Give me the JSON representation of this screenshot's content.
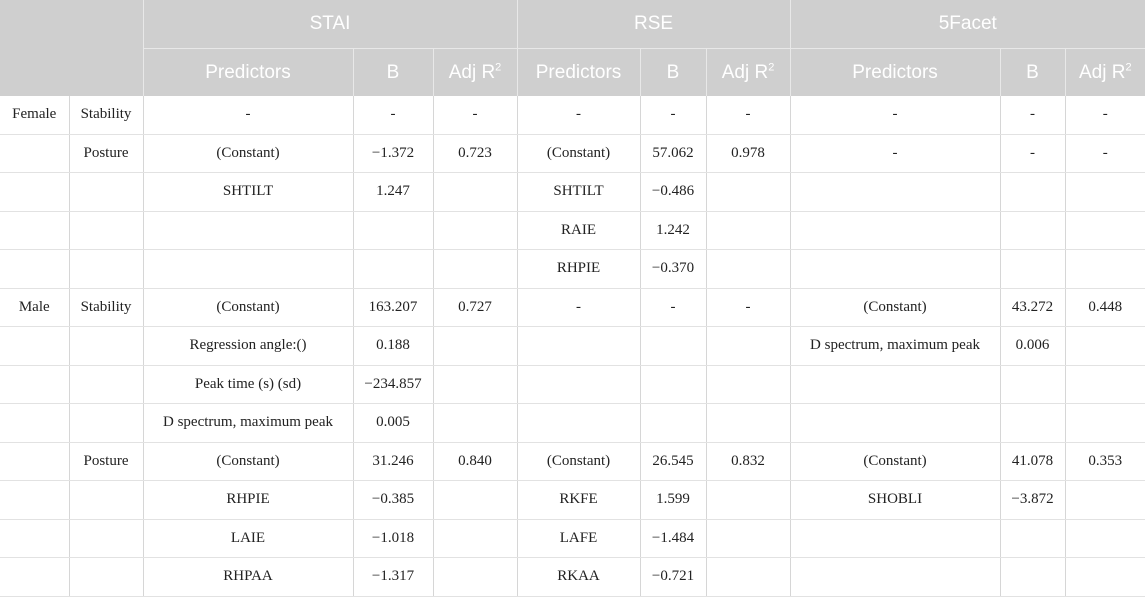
{
  "groups": [
    "STAI",
    "RSE",
    "5Facet"
  ],
  "subheaders": {
    "predictors": "Predictors",
    "b": "B",
    "adj_r": "Adj R",
    "adj_sup": "2"
  },
  "rows": [
    [
      "Female",
      "Stability",
      "-",
      "-",
      "-",
      "-",
      "-",
      "-",
      "-",
      "-",
      "-"
    ],
    [
      "",
      "Posture",
      "(Constant)",
      "−1.372",
      "0.723",
      "(Constant)",
      "57.062",
      "0.978",
      "-",
      "-",
      "-"
    ],
    [
      "",
      "",
      "SHTILT",
      "1.247",
      "",
      "SHTILT",
      "−0.486",
      "",
      "",
      "",
      ""
    ],
    [
      "",
      "",
      "",
      "",
      "",
      "RAIE",
      "1.242",
      "",
      "",
      "",
      ""
    ],
    [
      "",
      "",
      "",
      "",
      "",
      "RHPIE",
      "−0.370",
      "",
      "",
      "",
      ""
    ],
    [
      "Male",
      "Stability",
      "(Constant)",
      "163.207",
      "0.727",
      "-",
      "-",
      "-",
      "(Constant)",
      "43.272",
      "0.448"
    ],
    [
      "",
      "",
      "Regression angle:()",
      "0.188",
      "",
      "",
      "",
      "",
      "D spectrum, maximum peak",
      "0.006",
      ""
    ],
    [
      "",
      "",
      "Peak time (s) (sd)",
      "−234.857",
      "",
      "",
      "",
      "",
      "",
      "",
      ""
    ],
    [
      "",
      "",
      "D spectrum, maximum peak",
      "0.005",
      "",
      "",
      "",
      "",
      "",
      "",
      ""
    ],
    [
      "",
      "Posture",
      "(Constant)",
      "31.246",
      "0.840",
      "(Constant)",
      "26.545",
      "0.832",
      "(Constant)",
      "41.078",
      "0.353"
    ],
    [
      "",
      "",
      "RHPIE",
      "−0.385",
      "",
      "RKFE",
      "1.599",
      "",
      "SHOBLI",
      "−3.872",
      ""
    ],
    [
      "",
      "",
      "LAIE",
      "−1.018",
      "",
      "LAFE",
      "−1.484",
      "",
      "",
      "",
      ""
    ],
    [
      "",
      "",
      "RHPAA",
      "−1.317",
      "",
      "RKAA",
      "−0.721",
      "",
      "",
      "",
      ""
    ]
  ]
}
